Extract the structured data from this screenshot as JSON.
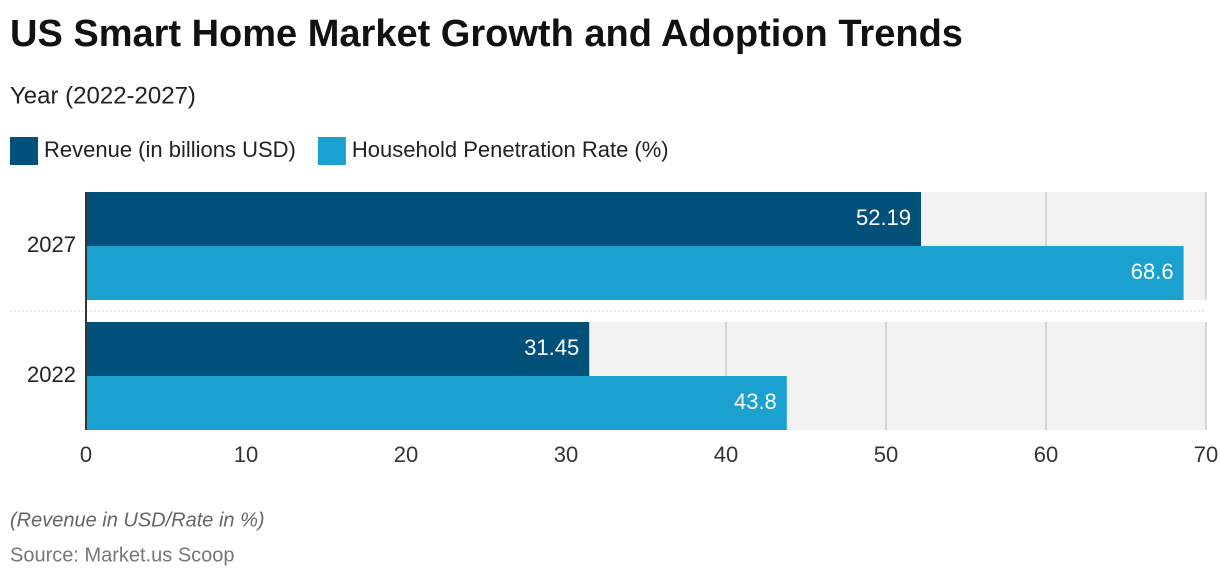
{
  "chart_data": {
    "type": "hbar",
    "title": "US Smart Home Market Growth and Adoption Trends",
    "subtitle": "Year (2022-2027)",
    "categories": [
      "2027",
      "2022"
    ],
    "series": [
      {
        "name": "Revenue (in billions USD)",
        "color": "#00507a",
        "values": [
          52.19,
          31.45
        ]
      },
      {
        "name": "Household Penetration Rate (%)",
        "color": "#1aa1cf",
        "values": [
          68.6,
          43.8
        ]
      }
    ],
    "xlim": [
      0,
      70
    ],
    "xticks": [
      0,
      10,
      20,
      30,
      40,
      50,
      60,
      70
    ],
    "grid": true,
    "note": "(Revenue in USD/Rate in %)",
    "source": "Source: Market.us Scoop"
  }
}
